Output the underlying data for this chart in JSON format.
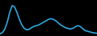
{
  "x": [
    0,
    1,
    2,
    3,
    4,
    5,
    6,
    7,
    8,
    9,
    10,
    11,
    12,
    13,
    14,
    15,
    16,
    17,
    18,
    19,
    20,
    21,
    22,
    23,
    24,
    25,
    26,
    27,
    28,
    29,
    30,
    31,
    32,
    33,
    34,
    35,
    36,
    37,
    38,
    39,
    40
  ],
  "y": [
    1.5,
    2.5,
    5,
    10,
    17,
    22,
    21,
    17,
    12,
    8,
    5.5,
    4.5,
    4.8,
    6,
    7,
    7.5,
    8,
    9,
    10,
    11,
    12,
    12.5,
    12,
    11,
    9.5,
    8,
    7,
    6,
    5.5,
    5,
    5.5,
    6.5,
    7.5,
    7,
    5.5,
    4,
    3.5,
    3,
    2.5,
    2.2,
    2
  ],
  "line_color": "#2ca8dc",
  "background_color": "#000000",
  "linewidth": 1.2
}
